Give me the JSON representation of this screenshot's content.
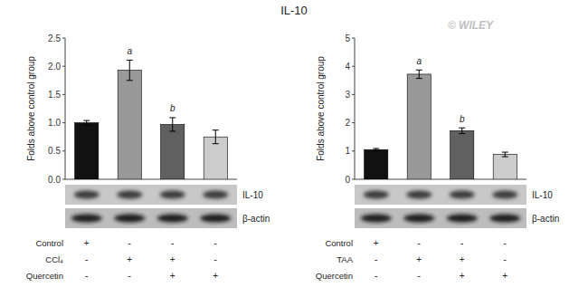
{
  "chart_data": [
    {
      "type": "bar",
      "title": "IL-10",
      "ylabel": "Folds above control group",
      "categories": [
        null,
        null,
        null,
        null
      ],
      "values": [
        1.0,
        1.93,
        0.97,
        0.75
      ],
      "errors": [
        0.04,
        0.18,
        0.12,
        0.12
      ],
      "colors": [
        "#111111",
        "#999999",
        "#606060",
        "#cccccc"
      ],
      "ylim": [
        0,
        2.5
      ],
      "yticks": [
        {
          "value": 0.0,
          "label": "0.0"
        },
        0.5,
        {
          "value": 1.0,
          "label": "1.0"
        },
        1.5,
        {
          "value": 2.0,
          "label": "2.0"
        },
        2.5
      ],
      "grid": false,
      "sig_labels": [
        null,
        "a",
        "b",
        null
      ],
      "blot_labels": [
        "IL-10",
        "β-actin"
      ],
      "table": {
        "row_labels": [
          "Control",
          "CCl₄",
          "Quercetin"
        ],
        "rows": [
          [
            "+",
            "-",
            "-",
            "-"
          ],
          [
            "-",
            "+",
            "+",
            "-"
          ],
          [
            "-",
            "-",
            "+",
            "+"
          ]
        ]
      },
      "annotations": [
        {
          "text": "© WILEY",
          "color": "#c0c0c0"
        }
      ]
    },
    {
      "type": "bar",
      "ylabel": "Folds above control group",
      "categories": [
        null,
        null,
        null,
        null
      ],
      "values": [
        1.05,
        3.72,
        1.72,
        0.88
      ],
      "errors": [
        0.04,
        0.15,
        0.1,
        0.08
      ],
      "colors": [
        "#111111",
        "#999999",
        "#606060",
        "#cccccc"
      ],
      "ylim": [
        0,
        5
      ],
      "yticks": [
        0,
        1,
        2,
        3,
        4,
        5
      ],
      "grid": false,
      "sig_labels": [
        null,
        "a",
        "b",
        null
      ],
      "blot_labels": [
        "IL-10",
        "β-actin"
      ],
      "table": {
        "row_labels": [
          "Control",
          "TAA",
          "Quercetin"
        ],
        "rows": [
          [
            "+",
            "-",
            "-",
            "-"
          ],
          [
            "-",
            "+",
            "+",
            "-"
          ],
          [
            "-",
            "-",
            "+",
            "+"
          ]
        ]
      }
    }
  ]
}
